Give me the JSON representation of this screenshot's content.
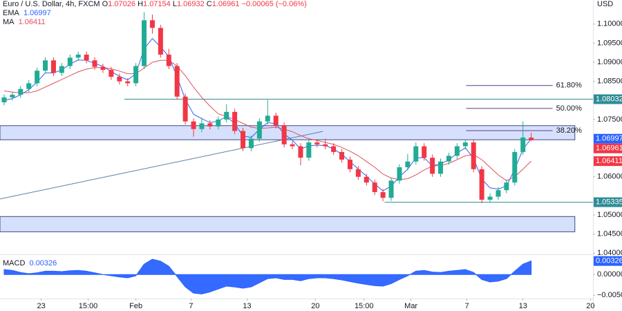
{
  "currency": "USD",
  "chart_data": [
    {
      "type": "candlestick",
      "title": "Euro / U.S. Dollar, 4h, FXCM",
      "ohlc_labels": [
        "O",
        "H",
        "L",
        "C"
      ],
      "change": {
        "value": -0.00065,
        "label": "−0.00065"
      },
      "change_pct": {
        "value": -0.06,
        "label": "(−0.06%)"
      },
      "up_color": "#22ab94",
      "down_color": "#f23645",
      "open": [
        1.0795,
        1.0808,
        1.0815,
        1.083,
        1.0845,
        1.0878,
        1.0905,
        1.0872,
        1.089,
        1.0912,
        1.092,
        1.0905,
        1.0888,
        1.088,
        1.0862,
        1.085,
        1.0845,
        1.089,
        1.101,
        1.099,
        1.092,
        1.089,
        1.081,
        1.0745,
        1.0725,
        1.074,
        1.0732,
        1.075,
        1.077,
        1.072,
        1.0675,
        1.07,
        1.0745,
        1.076,
        1.0735,
        1.0685,
        1.068,
        1.065,
        1.069,
        1.0685,
        1.068,
        1.0665,
        1.0645,
        1.062,
        1.06,
        1.0585,
        1.056,
        1.0545,
        1.059,
        1.0625,
        1.064,
        1.068,
        1.065,
        1.0608,
        1.064,
        1.0655,
        1.068,
        1.069,
        1.062,
        1.054,
        1.0548,
        1.0565,
        1.0585,
        1.0665,
        1.07026
      ],
      "high": [
        1.0816,
        1.0823,
        1.0838,
        1.0853,
        1.0886,
        1.0913,
        1.0913,
        1.0898,
        1.092,
        1.0928,
        1.0928,
        1.0913,
        1.0896,
        1.0888,
        1.087,
        1.0858,
        1.0898,
        1.1031,
        1.1025,
        1.0998,
        1.0935,
        1.0898,
        1.0818,
        1.0753,
        1.0755,
        1.0748,
        1.0758,
        1.079,
        1.0778,
        1.0728,
        1.0708,
        1.0753,
        1.0801,
        1.0768,
        1.0743,
        1.0693,
        1.0688,
        1.0698,
        1.0698,
        1.07,
        1.0688,
        1.0673,
        1.0653,
        1.0628,
        1.0608,
        1.0593,
        1.0568,
        1.0598,
        1.0633,
        1.066,
        1.069,
        1.0688,
        1.0658,
        1.0648,
        1.0663,
        1.0688,
        1.0698,
        1.0698,
        1.0628,
        1.0556,
        1.0573,
        1.0593,
        1.0673,
        1.0745,
        1.07154
      ],
      "low": [
        1.0787,
        1.08,
        1.0807,
        1.0822,
        1.0837,
        1.087,
        1.0864,
        1.0864,
        1.0882,
        1.0904,
        1.0897,
        1.088,
        1.0872,
        1.0854,
        1.0842,
        1.0837,
        1.0837,
        1.0882,
        1.0975,
        1.0912,
        1.0882,
        1.0802,
        1.0737,
        1.0705,
        1.0717,
        1.0724,
        1.0724,
        1.0742,
        1.0712,
        1.0667,
        1.0667,
        1.0692,
        1.0737,
        1.0727,
        1.0677,
        1.0672,
        1.063,
        1.0642,
        1.0677,
        1.0672,
        1.0657,
        1.0637,
        1.0612,
        1.0592,
        1.0577,
        1.0552,
        1.0536,
        1.0537,
        1.0582,
        1.0617,
        1.0632,
        1.0642,
        1.06,
        1.06,
        1.0632,
        1.0647,
        1.0672,
        1.0612,
        1.0531,
        1.0532,
        1.054,
        1.0557,
        1.0577,
        1.0657,
        1.06932
      ],
      "close": [
        1.0808,
        1.0815,
        1.083,
        1.0845,
        1.0878,
        1.0905,
        1.0872,
        1.089,
        1.0912,
        1.092,
        1.0905,
        1.0888,
        1.088,
        1.0862,
        1.085,
        1.0845,
        1.089,
        1.101,
        1.099,
        1.092,
        1.089,
        1.081,
        1.0745,
        1.0725,
        1.074,
        1.0732,
        1.075,
        1.077,
        1.072,
        1.0675,
        1.07,
        1.0745,
        1.076,
        1.0735,
        1.0685,
        1.068,
        1.065,
        1.069,
        1.0685,
        1.068,
        1.0665,
        1.0645,
        1.062,
        1.06,
        1.0585,
        1.056,
        1.0545,
        1.059,
        1.0625,
        1.064,
        1.068,
        1.065,
        1.0608,
        1.064,
        1.0655,
        1.068,
        1.069,
        1.062,
        1.054,
        1.0548,
        1.0565,
        1.0585,
        1.0665,
        1.0703,
        1.06961
      ],
      "series": [
        {
          "name": "EMA",
          "color": "#2962ff",
          "values": [
            1.08,
            1.0805,
            1.0815,
            1.0828,
            1.0848,
            1.0872,
            1.0872,
            1.088,
            1.0895,
            1.0906,
            1.0905,
            1.0897,
            1.0889,
            1.0876,
            1.0863,
            1.0854,
            1.087,
            1.0935,
            1.0962,
            1.094,
            1.0915,
            1.0862,
            1.0803,
            1.0764,
            1.0752,
            1.0742,
            1.0746,
            1.0758,
            1.0739,
            1.0707,
            1.0703,
            1.0724,
            1.0742,
            1.0739,
            1.0712,
            1.0696,
            1.0673,
            1.0681,
            1.0683,
            1.0682,
            1.0673,
            1.0659,
            1.064,
            1.062,
            1.0602,
            1.0581,
            1.0563,
            1.0576,
            1.06,
            1.062,
            1.065,
            1.065,
            1.0629,
            1.0634,
            1.0644,
            1.0662,
            1.0676,
            1.0648,
            1.0594,
            1.0571,
            1.0568,
            1.0576,
            1.062,
            1.0672,
            1.06997
          ]
        },
        {
          "name": "MA",
          "color": "#e0505f",
          "values": [
            1.0825,
            1.0822,
            1.082,
            1.082,
            1.0825,
            1.0835,
            1.0845,
            1.0855,
            1.0865,
            1.0875,
            1.0882,
            1.0886,
            1.0886,
            1.0883,
            1.0877,
            1.087,
            1.087,
            1.0885,
            1.09,
            1.0905,
            1.0905,
            1.089,
            1.0865,
            1.0835,
            1.0808,
            1.0785,
            1.0765,
            1.0758,
            1.075,
            1.074,
            1.073,
            1.0727,
            1.0728,
            1.073,
            1.0725,
            1.0718,
            1.0708,
            1.07,
            1.0695,
            1.069,
            1.0685,
            1.0677,
            1.0667,
            1.0655,
            1.064,
            1.0625,
            1.0607,
            1.0597,
            1.0593,
            1.0595,
            1.0605,
            1.0618,
            1.0628,
            1.063,
            1.0635,
            1.0645,
            1.0655,
            1.0658,
            1.0645,
            1.0625,
            1.0605,
            1.059,
            1.06,
            1.062,
            1.06411
          ]
        }
      ],
      "levels": [
        {
          "value": 1.08032,
          "x_start": 14.6,
          "color": "#2e8c96"
        },
        {
          "value": 1.05335,
          "x_start": 46.2,
          "color": "#2e8c96"
        }
      ],
      "zones": [
        {
          "low": 1.0697,
          "high": 1.0734
        },
        {
          "low": 1.0456,
          "high": 1.0496
        }
      ],
      "zone_x": [
        -0.5,
        69.3
      ],
      "trendline": {
        "x": [
          -0.5,
          38.7
        ],
        "y": [
          1.0542,
          1.0719
        ]
      },
      "fib": {
        "levels": [
          {
            "value": 61.8,
            "label": "61.80%"
          },
          {
            "value": 50,
            "label": "50.00%"
          },
          {
            "value": 38.2,
            "label": "38.20%"
          }
        ],
        "prices": [
          1.0839,
          1.0779,
          1.0721
        ],
        "x": [
          56.1,
          66.6
        ]
      },
      "xlim": [
        -0.5,
        71.5
      ],
      "xticks": [
        {
          "value": 4.5,
          "label": "23"
        },
        {
          "value": 10.2,
          "label": "15:00"
        },
        {
          "value": 16.0,
          "label": "Feb"
        },
        {
          "value": 22.7,
          "label": "7"
        },
        {
          "value": 29.5,
          "label": "13"
        },
        {
          "value": 37.8,
          "label": "20"
        },
        {
          "value": 43.7,
          "label": "15:00"
        },
        {
          "value": 49.4,
          "label": "Mar"
        },
        {
          "value": 56.2,
          "label": "7"
        },
        {
          "value": 63.0,
          "label": "13"
        },
        {
          "value": 71.2,
          "label": "20"
        }
      ],
      "ylim": [
        1.0397,
        1.1063
      ],
      "yticks": [
        {
          "value": 1.1,
          "label": "1.10000"
        },
        {
          "value": 1.095,
          "label": "1.09500"
        },
        {
          "value": 1.09,
          "label": "1.09000"
        },
        {
          "value": 1.085,
          "label": "1.08500"
        },
        {
          "value": 1.075,
          "label": "1.07500"
        },
        {
          "value": 1.06,
          "label": "1.06000"
        },
        {
          "value": 1.05,
          "label": "1.05000"
        },
        {
          "value": 1.045,
          "label": "1.04500"
        },
        {
          "value": 1.04,
          "label": "1.04000"
        }
      ]
    },
    {
      "type": "area",
      "title": "MACD",
      "series": [
        {
          "name": "MACD",
          "color": "#2962ff",
          "values": [
            0.0012,
            0.001,
            0.0005,
            0.0002,
            0.0004,
            0.0008,
            0.0008,
            0.0007,
            0.0009,
            0.001,
            0.0008,
            0.0004,
            0.0,
            -0.0003,
            -0.0006,
            -0.0008,
            -0.0003,
            0.0025,
            0.0037,
            0.0032,
            0.002,
            -0.0005,
            -0.003,
            -0.0045,
            -0.0047,
            -0.0042,
            -0.0035,
            -0.0028,
            -0.003,
            -0.0033,
            -0.003,
            -0.002,
            -0.001,
            -0.0008,
            -0.0012,
            -0.0012,
            -0.0015,
            -0.001,
            -0.0008,
            -0.0008,
            -0.001,
            -0.0013,
            -0.0017,
            -0.0021,
            -0.0024,
            -0.0027,
            -0.0028,
            -0.0022,
            -0.0012,
            -0.0003,
            0.0008,
            0.001,
            0.0006,
            0.0005,
            0.0008,
            0.001,
            0.0012,
            0.0005,
            -0.0012,
            -0.0018,
            -0.0016,
            -0.001,
            0.0008,
            0.0025,
            0.00326
          ]
        }
      ],
      "ylim": [
        -0.0058,
        0.0047
      ],
      "yticks": [
        {
          "value": 0,
          "label": "0.00000"
        },
        {
          "value": -0.005,
          "label": "−0.00500"
        }
      ]
    }
  ]
}
